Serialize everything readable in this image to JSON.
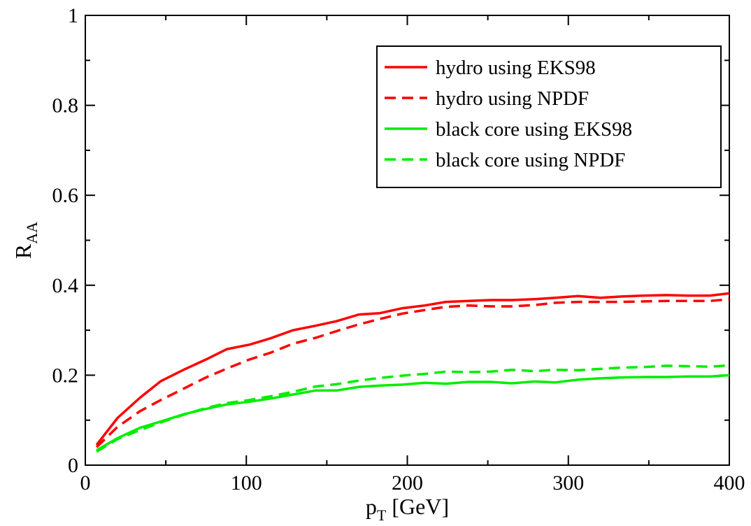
{
  "chart_data": {
    "type": "line",
    "xlabel": {
      "main": "p",
      "sub": "T",
      "suffix": " [GeV]"
    },
    "ylabel": {
      "main": "R",
      "sub": "AA"
    },
    "xlim": [
      0,
      400
    ],
    "ylim": [
      0,
      1
    ],
    "xticks": [
      0,
      100,
      200,
      300,
      400
    ],
    "yticks": [
      0,
      0.2,
      0.4,
      0.6,
      0.8,
      1
    ],
    "xtick_labels": [
      "0",
      "100",
      "200",
      "300",
      "400"
    ],
    "ytick_labels": [
      "0",
      "0.2",
      "0.4",
      "0.6",
      "0.8",
      "1"
    ],
    "grid": false,
    "legend_position": "top-right",
    "series": [
      {
        "name": "hydro using EKS98",
        "color": "#ff0000",
        "dash": "solid",
        "x": [
          7,
          20,
          34,
          47,
          61,
          75,
          88,
          102,
          115,
          129,
          143,
          156,
          170,
          183,
          197,
          211,
          224,
          238,
          252,
          265,
          279,
          292,
          306,
          320,
          333,
          347,
          361,
          374,
          388,
          400
        ],
        "y": [
          0.045,
          0.105,
          0.15,
          0.187,
          0.212,
          0.235,
          0.258,
          0.268,
          0.282,
          0.3,
          0.31,
          0.32,
          0.335,
          0.338,
          0.349,
          0.355,
          0.363,
          0.365,
          0.367,
          0.367,
          0.369,
          0.372,
          0.376,
          0.372,
          0.375,
          0.377,
          0.378,
          0.377,
          0.377,
          0.382
        ]
      },
      {
        "name": "hydro using NPDF",
        "color": "#ff0000",
        "dash": "dashed",
        "x": [
          7,
          20,
          34,
          47,
          61,
          75,
          88,
          102,
          115,
          129,
          143,
          156,
          170,
          183,
          197,
          211,
          224,
          238,
          252,
          265,
          279,
          292,
          306,
          320,
          333,
          347,
          361,
          374,
          388,
          400
        ],
        "y": [
          0.04,
          0.085,
          0.12,
          0.145,
          0.17,
          0.195,
          0.215,
          0.235,
          0.25,
          0.27,
          0.283,
          0.298,
          0.313,
          0.325,
          0.337,
          0.345,
          0.352,
          0.355,
          0.353,
          0.353,
          0.356,
          0.361,
          0.363,
          0.363,
          0.363,
          0.364,
          0.365,
          0.365,
          0.365,
          0.369
        ]
      },
      {
        "name": "black core using EKS98",
        "color": "#00ee00",
        "dash": "solid",
        "x": [
          7,
          20,
          34,
          47,
          61,
          75,
          88,
          102,
          115,
          129,
          143,
          156,
          170,
          183,
          197,
          211,
          224,
          238,
          252,
          265,
          279,
          292,
          306,
          320,
          333,
          347,
          361,
          374,
          388,
          400
        ],
        "y": [
          0.033,
          0.06,
          0.083,
          0.097,
          0.113,
          0.125,
          0.135,
          0.141,
          0.148,
          0.157,
          0.166,
          0.166,
          0.174,
          0.177,
          0.179,
          0.183,
          0.181,
          0.185,
          0.185,
          0.182,
          0.186,
          0.184,
          0.19,
          0.193,
          0.195,
          0.196,
          0.196,
          0.197,
          0.197,
          0.2
        ]
      },
      {
        "name": "black core using NPDF",
        "color": "#00ee00",
        "dash": "dashed",
        "x": [
          7,
          20,
          34,
          47,
          61,
          75,
          88,
          102,
          115,
          129,
          143,
          156,
          170,
          183,
          197,
          211,
          224,
          238,
          252,
          265,
          279,
          292,
          306,
          320,
          333,
          347,
          361,
          374,
          388,
          400
        ],
        "y": [
          0.03,
          0.058,
          0.078,
          0.095,
          0.112,
          0.127,
          0.138,
          0.145,
          0.153,
          0.163,
          0.175,
          0.18,
          0.188,
          0.194,
          0.199,
          0.203,
          0.208,
          0.207,
          0.208,
          0.212,
          0.209,
          0.212,
          0.211,
          0.214,
          0.217,
          0.218,
          0.221,
          0.22,
          0.219,
          0.222
        ]
      }
    ]
  }
}
